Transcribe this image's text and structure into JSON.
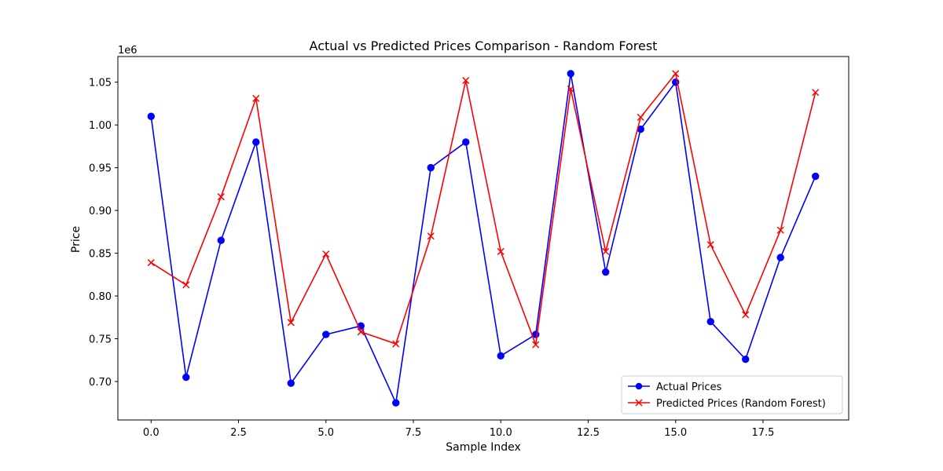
{
  "chart_data": {
    "type": "line",
    "title": "Actual vs Predicted Prices Comparison - Random Forest",
    "xlabel": "Sample Index",
    "ylabel": "Price",
    "y_offset_label": "1e6",
    "xlim": [
      -0.95,
      19.95
    ],
    "ylim": [
      655000,
      1080000
    ],
    "xticks": [
      0,
      2.5,
      5,
      7.5,
      10,
      12.5,
      15,
      17.5
    ],
    "xtick_labels": [
      "0.0",
      "2.5",
      "5.0",
      "7.5",
      "10.0",
      "12.5",
      "15.0",
      "17.5"
    ],
    "yticks": [
      700000,
      750000,
      800000,
      850000,
      900000,
      950000,
      1000000,
      1050000
    ],
    "ytick_labels": [
      "0.70",
      "0.75",
      "0.80",
      "0.85",
      "0.90",
      "0.95",
      "1.00",
      "1.05"
    ],
    "x": [
      0,
      1,
      2,
      3,
      4,
      5,
      6,
      7,
      8,
      9,
      10,
      11,
      12,
      13,
      14,
      15,
      16,
      17,
      18,
      19
    ],
    "grid": false,
    "legend_position": "lower-right",
    "series": [
      {
        "name": "Actual Prices",
        "color": "#0000ff",
        "marker": "circle",
        "values": [
          1010000,
          705000,
          865000,
          980000,
          698000,
          755000,
          765000,
          675000,
          950000,
          980000,
          730000,
          755000,
          1060000,
          828000,
          995000,
          1050000,
          770000,
          726000,
          845000,
          940000
        ]
      },
      {
        "name": "Predicted Prices (Random Forest)",
        "color": "#ff0000",
        "marker": "x",
        "values": [
          839000,
          813000,
          916000,
          1031000,
          769000,
          849000,
          758000,
          744000,
          870000,
          1052000,
          852000,
          743000,
          1042000,
          852000,
          1009000,
          1060000,
          860000,
          778000,
          877000,
          1038000
        ]
      }
    ]
  }
}
